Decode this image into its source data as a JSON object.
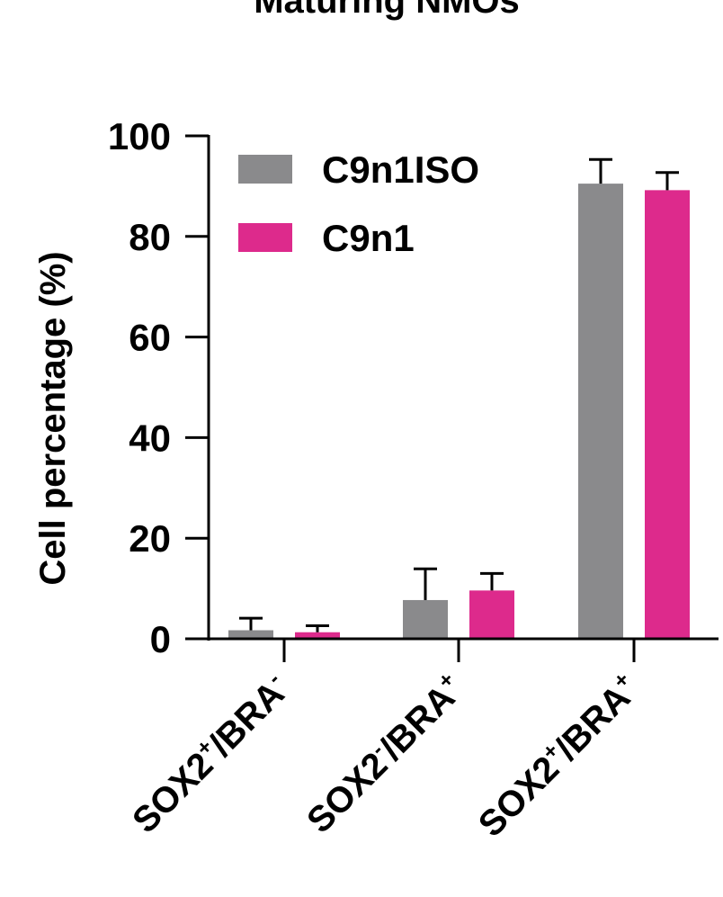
{
  "chart_data": {
    "type": "bar",
    "title": "Maturing NMOs",
    "ylabel": "Cell percentage (%)",
    "xlabel": "",
    "ylim": [
      0,
      100
    ],
    "yticks": [
      0,
      20,
      40,
      60,
      80,
      100
    ],
    "grid": false,
    "legend_position": "top-left",
    "categories": [
      {
        "base": "SOX2",
        "sup1": "+",
        "mid": "/BRA",
        "sup2": "-"
      },
      {
        "base": "SOX2",
        "sup1": "-",
        "mid": "/BRA",
        "sup2": "+"
      },
      {
        "base": "SOX2",
        "sup1": "+",
        "mid": "/BRA",
        "sup2": "+"
      }
    ],
    "series": [
      {
        "name": "C9n1ISO",
        "color": "#8a8a8c",
        "values": [
          1.7,
          7.7,
          90.5
        ],
        "errors": [
          2.4,
          6.2,
          4.8
        ]
      },
      {
        "name": "C9n1",
        "color": "#dd2a8c",
        "values": [
          1.3,
          9.6,
          89.2
        ],
        "errors": [
          1.3,
          3.4,
          3.5
        ]
      }
    ]
  }
}
